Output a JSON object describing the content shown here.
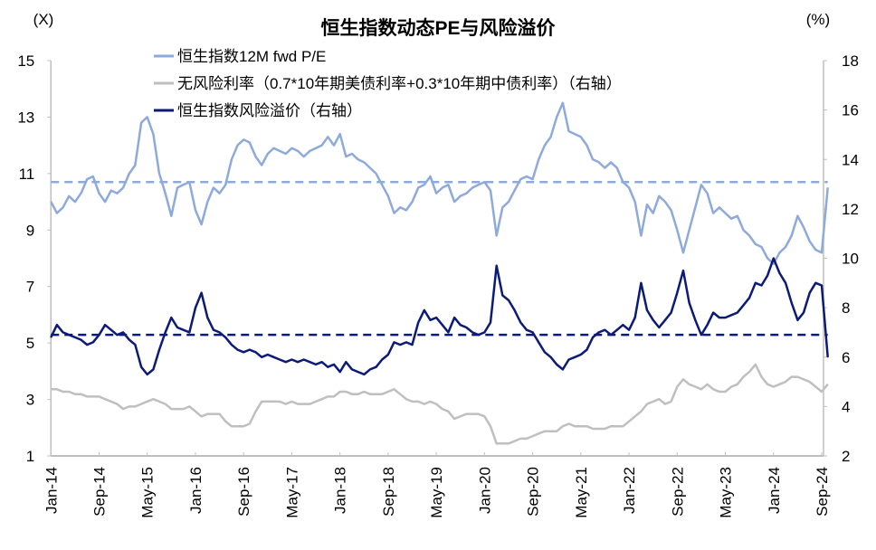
{
  "chart_data": {
    "type": "line",
    "title": "恒生指数动态PE与风险溢价",
    "left_axis": {
      "unit_label": "(X)",
      "ylim": [
        1,
        15
      ],
      "ticks": [
        1,
        3,
        5,
        7,
        9,
        11,
        13,
        15
      ]
    },
    "right_axis": {
      "unit_label": "(%)",
      "ylim": [
        2,
        18
      ],
      "ticks": [
        2,
        4,
        6,
        8,
        10,
        12,
        14,
        16,
        18
      ]
    },
    "x_ticks": [
      "Jan-14",
      "Sep-14",
      "May-15",
      "Jan-16",
      "Sep-16",
      "May-17",
      "Jan-18",
      "Sep-18",
      "May-19",
      "Jan-20",
      "Sep-20",
      "May-21",
      "Jan-22",
      "Sep-22",
      "May-23",
      "Jan-24",
      "Sep-24"
    ],
    "x_start": "2014-01",
    "x_frequency": "monthly",
    "grid": false,
    "legend_placement": "top-left",
    "series": [
      {
        "name": "恒生指数12M fwd P/E",
        "axis": "left",
        "color": "#8eaadb",
        "mean_line": 10.7,
        "values": [
          10.0,
          9.6,
          9.8,
          10.2,
          10.0,
          10.3,
          10.8,
          10.9,
          10.3,
          10.0,
          10.4,
          10.3,
          10.5,
          11.0,
          11.3,
          12.8,
          13.0,
          12.4,
          11.0,
          10.3,
          9.5,
          10.5,
          10.6,
          10.7,
          9.7,
          9.2,
          10.0,
          10.5,
          10.3,
          10.6,
          11.5,
          12.0,
          12.2,
          12.1,
          11.6,
          11.3,
          11.7,
          11.9,
          11.8,
          11.7,
          11.9,
          11.8,
          11.6,
          11.8,
          11.9,
          12.0,
          12.3,
          12.0,
          12.4,
          11.6,
          11.7,
          11.5,
          11.4,
          11.2,
          11.0,
          10.6,
          10.2,
          9.6,
          9.8,
          9.7,
          10.0,
          10.5,
          10.6,
          10.9,
          10.3,
          10.5,
          10.6,
          10.0,
          10.2,
          10.3,
          10.5,
          10.6,
          10.7,
          10.4,
          8.8,
          9.8,
          10.0,
          10.4,
          10.8,
          10.9,
          10.8,
          11.5,
          12.0,
          12.3,
          13.0,
          13.5,
          12.5,
          12.4,
          12.3,
          12.0,
          11.5,
          11.4,
          11.2,
          11.4,
          11.2,
          10.7,
          10.5,
          10.0,
          8.8,
          9.9,
          9.6,
          10.2,
          10.0,
          9.7,
          9.0,
          8.2,
          9.0,
          9.8,
          10.6,
          10.3,
          9.6,
          9.8,
          9.6,
          9.4,
          9.5,
          9.0,
          8.8,
          8.5,
          8.4,
          8.0,
          7.8,
          8.2,
          8.4,
          8.8,
          9.5,
          9.1,
          8.6,
          8.3,
          8.2,
          10.5
        ]
      },
      {
        "name": "无风险利率（0.7*10年期美债利率+0.3*10年期中债利率）（右轴）",
        "axis": "right",
        "color": "#bfbfbf",
        "values": [
          4.7,
          4.7,
          4.6,
          4.6,
          4.5,
          4.5,
          4.4,
          4.4,
          4.4,
          4.3,
          4.2,
          4.1,
          3.9,
          4.0,
          4.0,
          4.1,
          4.2,
          4.3,
          4.2,
          4.1,
          3.9,
          3.9,
          3.9,
          4.0,
          3.8,
          3.6,
          3.7,
          3.7,
          3.7,
          3.4,
          3.2,
          3.2,
          3.2,
          3.3,
          3.8,
          4.2,
          4.2,
          4.2,
          4.2,
          4.1,
          4.2,
          4.1,
          4.1,
          4.1,
          4.2,
          4.3,
          4.4,
          4.4,
          4.6,
          4.6,
          4.5,
          4.5,
          4.6,
          4.5,
          4.5,
          4.5,
          4.6,
          4.7,
          4.5,
          4.3,
          4.2,
          4.2,
          4.1,
          4.2,
          4.1,
          3.9,
          3.8,
          3.5,
          3.6,
          3.7,
          3.7,
          3.7,
          3.6,
          3.2,
          2.5,
          2.5,
          2.5,
          2.6,
          2.7,
          2.7,
          2.8,
          2.9,
          3.0,
          3.0,
          3.0,
          3.2,
          3.3,
          3.2,
          3.2,
          3.2,
          3.1,
          3.1,
          3.1,
          3.2,
          3.2,
          3.2,
          3.4,
          3.6,
          3.8,
          4.1,
          4.2,
          4.3,
          4.1,
          4.2,
          4.8,
          5.1,
          4.9,
          4.8,
          4.7,
          4.9,
          4.7,
          4.6,
          4.6,
          4.8,
          4.9,
          5.2,
          5.4,
          5.7,
          5.2,
          4.9,
          4.8,
          4.9,
          5.0,
          5.2,
          5.2,
          5.1,
          5.0,
          4.8,
          4.6,
          4.9
        ]
      },
      {
        "name": "恒生指数风险溢价（右轴）",
        "axis": "right",
        "color": "#0c1a78",
        "mean_line": 6.9,
        "values": [
          6.8,
          7.3,
          7.0,
          6.9,
          6.8,
          6.7,
          6.5,
          6.6,
          6.9,
          7.3,
          7.1,
          6.9,
          7.0,
          6.7,
          6.5,
          5.6,
          5.3,
          5.5,
          6.3,
          7.0,
          7.6,
          7.2,
          7.1,
          7.0,
          8.0,
          8.6,
          7.6,
          7.1,
          7.0,
          6.8,
          6.5,
          6.3,
          6.2,
          6.3,
          6.2,
          6.0,
          6.1,
          6.0,
          5.9,
          5.8,
          5.9,
          5.8,
          5.9,
          5.8,
          5.7,
          5.8,
          5.6,
          5.7,
          5.4,
          5.8,
          5.5,
          5.4,
          5.3,
          5.5,
          5.6,
          5.9,
          6.1,
          6.6,
          6.5,
          6.6,
          6.5,
          7.4,
          7.9,
          7.5,
          7.6,
          7.3,
          7.0,
          7.6,
          7.3,
          7.2,
          7.0,
          6.9,
          7.0,
          7.4,
          9.7,
          8.5,
          8.3,
          7.9,
          7.4,
          7.1,
          7.0,
          6.6,
          6.2,
          6.0,
          5.7,
          5.5,
          5.9,
          6.0,
          6.1,
          6.3,
          6.8,
          7.0,
          7.1,
          6.9,
          7.1,
          7.3,
          7.1,
          7.6,
          9.0,
          7.9,
          7.5,
          7.2,
          7.5,
          7.8,
          8.6,
          9.5,
          8.2,
          7.5,
          6.9,
          7.3,
          7.8,
          7.6,
          7.6,
          7.7,
          7.8,
          8.1,
          8.4,
          9.0,
          8.9,
          9.3,
          10.0,
          9.4,
          9.0,
          8.2,
          7.5,
          7.8,
          8.6,
          9.0,
          8.9,
          6.0
        ]
      }
    ]
  }
}
